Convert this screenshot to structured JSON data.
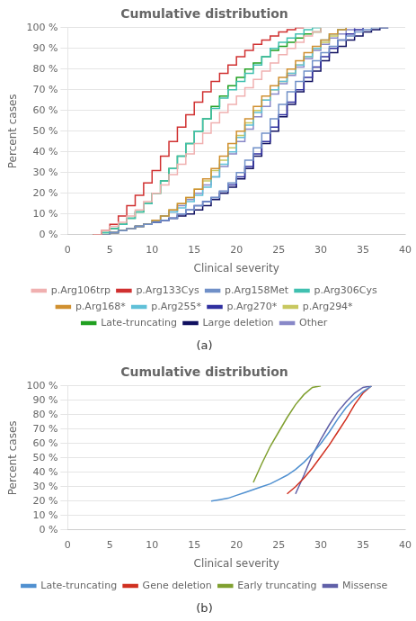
{
  "chart_data": [
    {
      "type": "line",
      "line_style": "step",
      "title": "Cumulative distribution",
      "x_label": "Clinical severity",
      "y_label": "Percent cases",
      "annotations": [
        "(a)"
      ],
      "series": [
        {
          "name": "p.Arg106trp",
          "color": "#f0b0b0",
          "x": [
            3,
            4,
            5,
            6,
            7,
            8,
            9,
            10,
            11,
            12,
            13,
            14,
            15,
            16,
            17,
            18,
            19,
            20,
            21,
            22,
            23,
            24,
            25,
            26,
            27,
            28,
            29,
            30
          ],
          "values": [
            0,
            2,
            4,
            6,
            9,
            12,
            16,
            20,
            24,
            29,
            34,
            39,
            44,
            49,
            54,
            59,
            63,
            67,
            71,
            75,
            79,
            83,
            87,
            90,
            93,
            96,
            98,
            100
          ]
        },
        {
          "name": "p.Arg133Cys",
          "color": "#d03030",
          "x": [
            3,
            4,
            5,
            6,
            7,
            8,
            9,
            10,
            11,
            12,
            13,
            14,
            15,
            16,
            17,
            18,
            19,
            20,
            21,
            22,
            23,
            24,
            25,
            26,
            27,
            28
          ],
          "values": [
            0,
            2,
            5,
            9,
            14,
            19,
            25,
            31,
            38,
            45,
            52,
            58,
            64,
            69,
            74,
            78,
            82,
            86,
            89,
            92,
            94,
            96,
            98,
            99,
            100,
            100
          ]
        },
        {
          "name": "p.Arg158Met",
          "color": "#7090c8",
          "x": [
            4,
            5,
            6,
            7,
            8,
            9,
            10,
            11,
            12,
            13,
            14,
            15,
            16,
            17,
            18,
            19,
            20,
            21,
            22,
            23,
            24,
            25,
            26,
            27,
            28,
            29,
            30,
            31,
            32,
            33,
            34,
            35,
            36,
            37,
            38
          ],
          "values": [
            0,
            1,
            2,
            3,
            4,
            5,
            6,
            7,
            8,
            10,
            12,
            14,
            16,
            18,
            21,
            25,
            30,
            36,
            42,
            49,
            56,
            63,
            69,
            74,
            79,
            84,
            88,
            91,
            94,
            96,
            98,
            99,
            100,
            100,
            100
          ]
        },
        {
          "name": "p.Arg306Cys",
          "color": "#40c0b0",
          "x": [
            3,
            4,
            5,
            6,
            7,
            8,
            9,
            10,
            11,
            12,
            13,
            14,
            15,
            16,
            17,
            18,
            19,
            20,
            21,
            22,
            23,
            24,
            25,
            26,
            27,
            28,
            29,
            30
          ],
          "values": [
            0,
            1,
            3,
            5,
            8,
            11,
            15,
            20,
            26,
            32,
            38,
            44,
            50,
            56,
            61,
            66,
            70,
            74,
            78,
            82,
            86,
            90,
            93,
            95,
            97,
            99,
            100,
            100
          ]
        },
        {
          "name": "p.Arg168*",
          "color": "#d09030",
          "x": [
            4,
            5,
            6,
            7,
            8,
            9,
            10,
            11,
            12,
            13,
            14,
            15,
            16,
            17,
            18,
            19,
            20,
            21,
            22,
            23,
            24,
            25,
            26,
            27,
            28,
            29,
            30,
            31,
            32,
            33
          ],
          "values": [
            0,
            1,
            2,
            3,
            4,
            5,
            7,
            9,
            12,
            15,
            18,
            22,
            27,
            32,
            38,
            44,
            50,
            56,
            62,
            67,
            72,
            76,
            80,
            84,
            88,
            91,
            94,
            97,
            99,
            100
          ]
        },
        {
          "name": "p.Arg255*",
          "color": "#60c0d8",
          "x": [
            4,
            5,
            6,
            7,
            8,
            9,
            10,
            11,
            12,
            13,
            14,
            15,
            16,
            17,
            18,
            19,
            20,
            21,
            22,
            23,
            24,
            25,
            26,
            27,
            28,
            29,
            30,
            31,
            32,
            33
          ],
          "values": [
            0,
            1,
            2,
            3,
            4,
            5,
            7,
            9,
            11,
            13,
            16,
            19,
            23,
            28,
            34,
            40,
            47,
            53,
            59,
            65,
            70,
            74,
            78,
            82,
            86,
            90,
            94,
            97,
            99,
            100
          ]
        },
        {
          "name": "p.Arg270*",
          "color": "#3030a0",
          "x": [
            4,
            5,
            6,
            7,
            8,
            9,
            10,
            11,
            12,
            13,
            14,
            15,
            16,
            17,
            18,
            19,
            20,
            21,
            22,
            23,
            24,
            25,
            26,
            27,
            28,
            29,
            30,
            31,
            32,
            33,
            34,
            35
          ],
          "values": [
            0,
            1,
            2,
            3,
            4,
            5,
            6,
            7,
            8,
            10,
            12,
            14,
            16,
            18,
            21,
            24,
            28,
            33,
            39,
            45,
            52,
            58,
            64,
            70,
            76,
            81,
            86,
            90,
            94,
            97,
            99,
            100
          ]
        },
        {
          "name": "p.Arg294*",
          "color": "#c8c860",
          "x": [
            4,
            5,
            6,
            7,
            8,
            9,
            10,
            11,
            12,
            13,
            14,
            15,
            16,
            17,
            18,
            19,
            20,
            21,
            22,
            23,
            24,
            25,
            26,
            27,
            28,
            29,
            30,
            31,
            32,
            33
          ],
          "values": [
            0,
            1,
            2,
            3,
            4,
            5,
            7,
            9,
            12,
            15,
            18,
            22,
            26,
            31,
            36,
            42,
            48,
            54,
            60,
            65,
            70,
            74,
            78,
            82,
            86,
            90,
            93,
            96,
            99,
            100
          ]
        },
        {
          "name": "Late-truncating",
          "color": "#20a020",
          "x": [
            3,
            4,
            5,
            6,
            7,
            8,
            9,
            10,
            11,
            12,
            13,
            14,
            15,
            16,
            17,
            18,
            19,
            20,
            21,
            22,
            23,
            24,
            25,
            26,
            27,
            28,
            29,
            30
          ],
          "values": [
            0,
            1,
            3,
            5,
            8,
            11,
            15,
            20,
            26,
            32,
            38,
            44,
            50,
            56,
            62,
            67,
            72,
            76,
            80,
            83,
            86,
            89,
            91,
            93,
            95,
            97,
            98,
            100
          ]
        },
        {
          "name": "Large deletion",
          "color": "#101060",
          "x": [
            4,
            5,
            6,
            7,
            8,
            9,
            10,
            11,
            12,
            13,
            14,
            15,
            16,
            17,
            18,
            19,
            20,
            21,
            22,
            23,
            24,
            25,
            26,
            27,
            28,
            29,
            30,
            31,
            32,
            33,
            34,
            35,
            36,
            37,
            38
          ],
          "values": [
            0,
            1,
            2,
            3,
            4,
            5,
            6,
            7,
            8,
            9,
            10,
            12,
            14,
            17,
            20,
            23,
            27,
            32,
            38,
            44,
            50,
            57,
            63,
            69,
            74,
            79,
            84,
            88,
            91,
            94,
            96,
            98,
            99,
            100,
            100
          ]
        },
        {
          "name": "Other",
          "color": "#8888c8",
          "x": [
            4,
            5,
            6,
            7,
            8,
            9,
            10,
            11,
            12,
            13,
            14,
            15,
            16,
            17,
            18,
            19,
            20,
            21,
            22,
            23,
            24,
            25,
            26,
            27,
            28,
            29,
            30,
            31,
            32,
            33,
            34
          ],
          "values": [
            0,
            1,
            2,
            3,
            4,
            5,
            7,
            9,
            11,
            14,
            17,
            20,
            24,
            28,
            33,
            39,
            45,
            51,
            57,
            62,
            68,
            73,
            77,
            81,
            85,
            89,
            92,
            95,
            97,
            99,
            100
          ]
        }
      ],
      "xlim": [
        0,
        40
      ],
      "ylim": [
        0,
        100
      ],
      "xticks": [
        0,
        5,
        10,
        15,
        20,
        25,
        30,
        35,
        40
      ],
      "yticks": [
        {
          "value": 0,
          "label": "0 %"
        },
        {
          "value": 10,
          "label": "10 %"
        },
        {
          "value": 20,
          "label": "20 %"
        },
        {
          "value": 30,
          "label": "30 %"
        },
        {
          "value": 40,
          "label": "40 %"
        },
        {
          "value": 50,
          "label": "50 %"
        },
        {
          "value": 60,
          "label": "60 %"
        },
        {
          "value": 70,
          "label": "70 %"
        },
        {
          "value": 80,
          "label": "80 %"
        },
        {
          "value": 90,
          "label": "90 %"
        },
        {
          "value": 100,
          "label": "100 %"
        }
      ],
      "grid": "y",
      "legend": "bottom"
    },
    {
      "type": "line",
      "line_style": "solid",
      "title": "Cumulative distribution",
      "x_label": "Clinical severity",
      "y_label": "Percent cases",
      "annotations": [
        "(b)"
      ],
      "series": [
        {
          "name": "Late-truncating",
          "color": "#5090d0",
          "x": [
            17,
            18,
            19,
            20,
            21,
            22,
            23,
            24,
            25,
            26,
            27,
            28,
            29,
            30,
            31,
            32,
            33,
            34,
            35,
            36
          ],
          "values": [
            20,
            21,
            22,
            24,
            26,
            28,
            30,
            32,
            35,
            38,
            42,
            47,
            53,
            60,
            68,
            77,
            85,
            91,
            96,
            100
          ]
        },
        {
          "name": "Gene deletion",
          "color": "#d03020",
          "x": [
            26,
            27,
            28,
            29,
            30,
            31,
            32,
            33,
            34,
            35,
            36
          ],
          "values": [
            25,
            30,
            36,
            43,
            51,
            59,
            68,
            77,
            87,
            95,
            100
          ]
        },
        {
          "name": "Early truncating",
          "color": "#80a030",
          "x": [
            22,
            23,
            24,
            25,
            26,
            27,
            28,
            29,
            30
          ],
          "values": [
            33,
            46,
            58,
            68,
            78,
            87,
            94,
            99,
            100
          ]
        },
        {
          "name": "Missense",
          "color": "#6060a8",
          "x": [
            27,
            28,
            29,
            30,
            31,
            32,
            33,
            34,
            35,
            36
          ],
          "values": [
            25,
            38,
            52,
            63,
            73,
            82,
            89,
            95,
            99,
            100
          ]
        }
      ],
      "xlim": [
        0,
        40
      ],
      "ylim": [
        0,
        100
      ],
      "xticks": [
        0,
        5,
        10,
        15,
        20,
        25,
        30,
        35,
        40
      ],
      "yticks": [
        {
          "value": 0,
          "label": "0 %"
        },
        {
          "value": 10,
          "label": "10 %"
        },
        {
          "value": 20,
          "label": "20 %"
        },
        {
          "value": 30,
          "label": "30 %"
        },
        {
          "value": 40,
          "label": "40 %"
        },
        {
          "value": 50,
          "label": "50 %"
        },
        {
          "value": 60,
          "label": "60 %"
        },
        {
          "value": 70,
          "label": "70 %"
        },
        {
          "value": 80,
          "label": "80 %"
        },
        {
          "value": 90,
          "label": "90 %"
        },
        {
          "value": 100,
          "label": "100 %"
        }
      ],
      "grid": "y",
      "legend": "bottom"
    }
  ]
}
